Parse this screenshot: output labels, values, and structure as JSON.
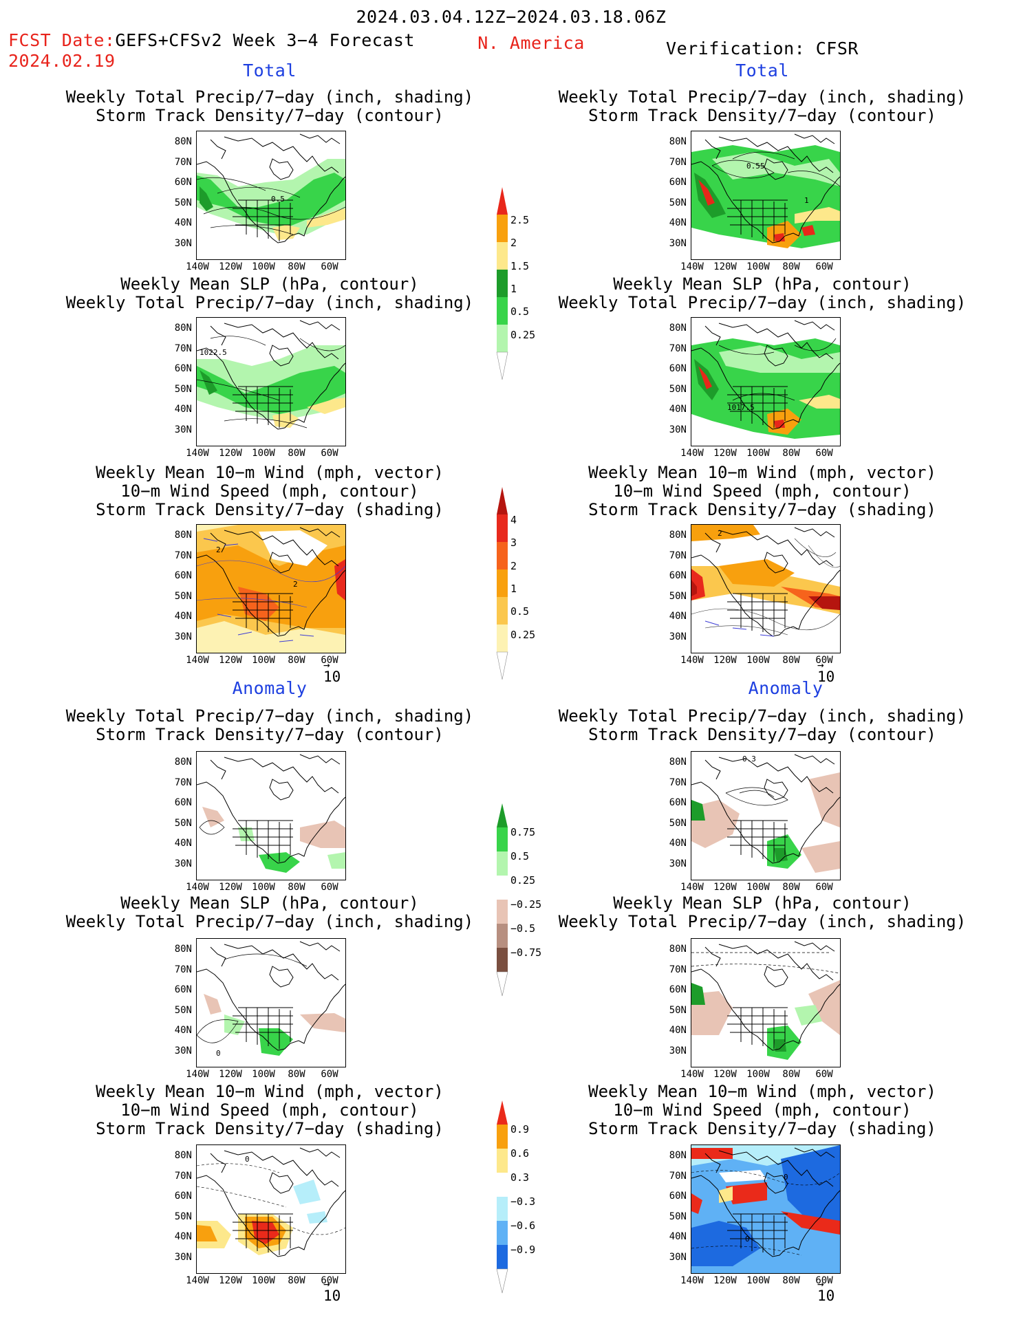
{
  "header": {
    "period": "2024.03.04.12Z−2024.03.18.06Z",
    "fcst_date_label": "FCST Date:",
    "fcst_date": "2024.02.19",
    "model": "GEFS+CFSv2 Week 3−4 Forecast",
    "region": "N. America",
    "verification": "Verification: CFSR"
  },
  "sections": {
    "total": "Total",
    "anomaly": "Anomaly"
  },
  "panel_titles": {
    "precip_storm": [
      "Weekly Total Precip/7−day (inch, shading)",
      "Storm Track Density/7−day (contour)"
    ],
    "slp_precip": [
      "Weekly Mean SLP (hPa, contour)",
      "Weekly Total Precip/7−day (inch, shading)"
    ],
    "wind_storm": [
      "Weekly Mean 10−m Wind (mph, vector)",
      "10−m Wind Speed (mph, contour)",
      "Storm Track Density/7−day (shading)"
    ]
  },
  "axes": {
    "lat": [
      "80N",
      "70N",
      "60N",
      "50N",
      "40N",
      "30N"
    ],
    "lon": [
      "140W",
      "120W",
      "100W",
      "80W",
      "60W"
    ]
  },
  "contour_labels": {
    "fc_total_precip": "0.5",
    "vf_total_precip_a": "0.5",
    "vf_total_precip_b": "5",
    "vf_total_precip_c": "1",
    "fc_total_slp": "1022.5",
    "vf_total_slp": "1017.5",
    "fc_total_wind_a": "2",
    "fc_total_wind_b": "2",
    "vf_total_wind": "2",
    "vf_anom_precip": "0.3",
    "fc_anom_slp": "0",
    "fc_anom_wind": "0",
    "vf_anom_wind_a": "0",
    "vf_anom_wind_b": "0"
  },
  "vector_ref": "10",
  "colorbars": {
    "total_precip": {
      "labels": [
        "2.5",
        "2",
        "1.5",
        "1",
        "0.5",
        "0.25"
      ],
      "colors": [
        "#e8271a",
        "#f8a00e",
        "#fde88b",
        "#1d9c2a",
        "#38d44a",
        "#b3f5ae"
      ]
    },
    "storm_density": {
      "labels": [
        "4",
        "3",
        "2",
        "1",
        "0.5",
        "0.25"
      ],
      "colors": [
        "#b5150f",
        "#e8291d",
        "#f6631c",
        "#f8a00e",
        "#fbc74d",
        "#fdf2b3"
      ]
    },
    "anom_precip": {
      "labels": [
        "0.75",
        "0.5",
        "0.25",
        "−0.25",
        "−0.5",
        "−0.75"
      ],
      "colors": [
        "#1d9c2a",
        "#38d44a",
        "#b3f5ae",
        "#ffffff",
        "#e8c4b5",
        "#b78f80",
        "#7a4f40"
      ]
    },
    "anom_density": {
      "labels": [
        "0.9",
        "0.6",
        "0.3",
        "−0.3",
        "−0.6",
        "−0.9"
      ],
      "colors": [
        "#ea2a1a",
        "#f8a00e",
        "#fde88b",
        "#ffffff",
        "#b6eefa",
        "#5fb1f5",
        "#1d6ae0"
      ]
    }
  }
}
